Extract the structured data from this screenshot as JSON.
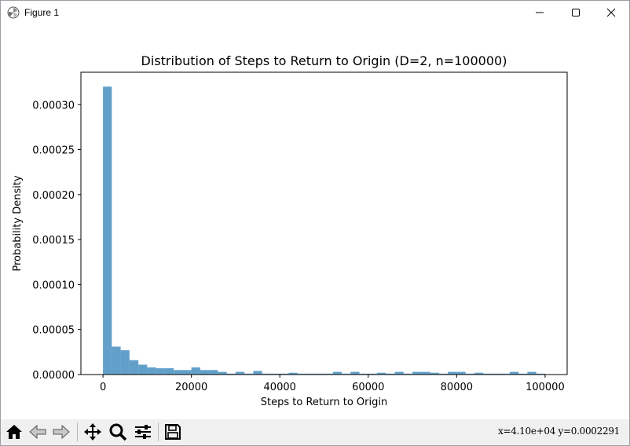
{
  "window": {
    "title": "Figure 1",
    "app_icon": "matplotlib-icon"
  },
  "toolbar": {
    "buttons": [
      {
        "name": "home-icon"
      },
      {
        "name": "back-arrow-icon"
      },
      {
        "name": "forward-arrow-icon"
      },
      {
        "name": "pan-icon"
      },
      {
        "name": "zoom-icon"
      },
      {
        "name": "configure-subplots-icon"
      },
      {
        "name": "save-icon"
      }
    ],
    "coords": "x=4.10e+04 y=0.0002291"
  },
  "chart_data": {
    "type": "bar",
    "title": "Distribution of Steps to Return to Origin (D=2, n=100000)",
    "xlabel": "Steps to Return to Origin",
    "ylabel": "Probability Density",
    "xlim": [
      -4990,
      104990
    ],
    "ylim": [
      0,
      0.000336
    ],
    "xticks": [
      0,
      20000,
      40000,
      60000,
      80000,
      100000
    ],
    "xtick_labels": [
      "0",
      "20000",
      "40000",
      "60000",
      "80000",
      "100000"
    ],
    "yticks": [
      0,
      5e-05,
      0.0001,
      0.00015,
      0.0002,
      0.00025,
      0.0003
    ],
    "ytick_labels": [
      "0.00000",
      "0.00005",
      "0.00010",
      "0.00015",
      "0.00020",
      "0.00025",
      "0.00030"
    ],
    "bar_color": "#1f77b4",
    "bar_alpha": 0.7,
    "bin_start": 0,
    "bin_width": 2000,
    "values": [
      0.00032,
      3.1e-05,
      2.7e-05,
      1.6e-05,
      1.1e-05,
      8e-06,
      7e-06,
      7e-06,
      5e-06,
      5e-06,
      8e-06,
      5e-06,
      5e-06,
      3e-06,
      1e-06,
      3e-06,
      1e-06,
      4e-06,
      1e-06,
      1e-06,
      1e-06,
      2e-06,
      1e-06,
      1e-06,
      1e-06,
      1e-06,
      3e-06,
      1e-06,
      3e-06,
      1e-06,
      1e-06,
      2e-06,
      1e-06,
      3e-06,
      1e-06,
      3e-06,
      3e-06,
      2e-06,
      1e-06,
      3e-06,
      3e-06,
      1e-06,
      2e-06,
      1e-06,
      1e-06,
      1e-06,
      3e-06,
      1e-06,
      3e-06,
      1e-06
    ],
    "grid": false
  }
}
